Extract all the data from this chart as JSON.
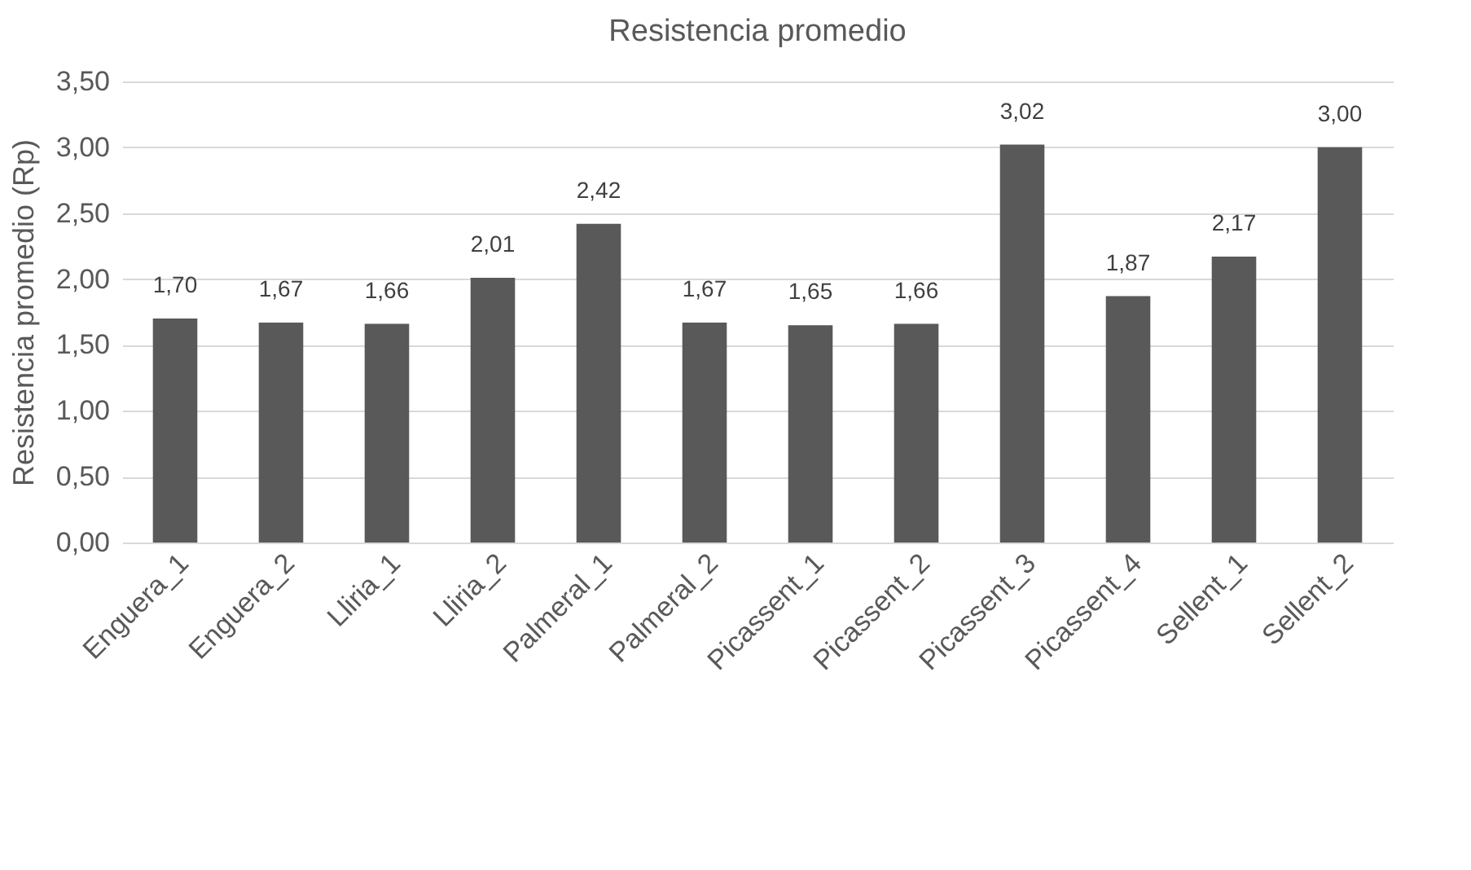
{
  "chart_data": {
    "type": "bar",
    "title": "Resistencia promedio",
    "ylabel": "Resistencia promedio (Rp)",
    "categories": [
      "Enguera_1",
      "Enguera_2",
      "Lliria_1",
      "Lliria_2",
      "Palmeral_1",
      "Palmeral_2",
      "Picassent_1",
      "Picassent_2",
      "Picassent_3",
      "Picassent_4",
      "Sellent_1",
      "Sellent_2"
    ],
    "values": [
      1.7,
      1.67,
      1.66,
      2.01,
      2.42,
      1.67,
      1.65,
      1.66,
      3.02,
      1.87,
      2.17,
      3.0
    ],
    "value_labels": [
      "1,70",
      "1,67",
      "1,66",
      "2,01",
      "2,42",
      "1,67",
      "1,65",
      "1,66",
      "3,02",
      "1,87",
      "2,17",
      "3,00"
    ],
    "color": "#595959",
    "ylim": [
      0,
      3.5
    ],
    "yticks": [
      {
        "value": 0,
        "label": "0,00"
      },
      {
        "value": 0.5,
        "label": "0,50"
      },
      {
        "value": 1,
        "label": "1,00"
      },
      {
        "value": 1.5,
        "label": "1,50"
      },
      {
        "value": 2,
        "label": "2,00"
      },
      {
        "value": 2.5,
        "label": "2,50"
      },
      {
        "value": 3,
        "label": "3,00"
      },
      {
        "value": 3.5,
        "label": "3,50"
      }
    ],
    "grid": "y"
  }
}
